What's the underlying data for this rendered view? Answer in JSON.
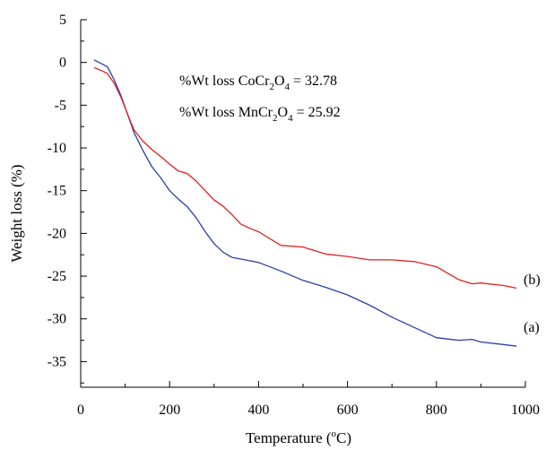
{
  "chart_data": {
    "type": "line",
    "xlabel": "Temperature (°C)",
    "xlabel_prefix": "Temperature (",
    "xlabel_sup": "o",
    "xlabel_suffix": "C)",
    "ylabel": "Weight loss (%)",
    "xlim": [
      0,
      1000
    ],
    "ylim": [
      -38,
      5
    ],
    "x_ticks": [
      0,
      200,
      400,
      600,
      800,
      1000
    ],
    "y_ticks": [
      5,
      0,
      -5,
      -10,
      -15,
      -20,
      -25,
      -30,
      -35
    ],
    "grid": false,
    "annotations": [
      {
        "prefix": "%Wt loss CoCr",
        "sub1": "2",
        "mid": "O",
        "sub2": "4",
        "suffix": " = 32.78"
      },
      {
        "prefix": "%Wt loss MnCr",
        "sub1": "2",
        "mid": "O",
        "sub2": "4",
        "suffix": " = 25.92"
      }
    ],
    "series": [
      {
        "label": "(a)",
        "color": "#2b3ea6",
        "x": [
          30,
          45,
          60,
          75,
          90,
          105,
          120,
          140,
          160,
          180,
          200,
          220,
          240,
          260,
          280,
          300,
          320,
          340,
          360,
          380,
          400,
          450,
          500,
          550,
          600,
          650,
          700,
          750,
          800,
          850,
          880,
          900,
          950,
          980
        ],
        "y": [
          0.3,
          -0.1,
          -0.5,
          -2.0,
          -3.8,
          -6.0,
          -8.2,
          -10.3,
          -12.2,
          -13.5,
          -15.0,
          -16.0,
          -16.9,
          -18.2,
          -19.8,
          -21.2,
          -22.2,
          -22.8,
          -23.0,
          -23.2,
          -23.4,
          -24.4,
          -25.5,
          -26.3,
          -27.2,
          -28.4,
          -29.8,
          -31.0,
          -32.2,
          -32.5,
          -32.4,
          -32.7,
          -33.0,
          -33.2
        ]
      },
      {
        "label": "(b)",
        "color": "#e02020",
        "x": [
          30,
          45,
          60,
          75,
          90,
          105,
          120,
          140,
          160,
          180,
          200,
          220,
          240,
          260,
          280,
          300,
          320,
          340,
          360,
          380,
          400,
          450,
          500,
          550,
          600,
          650,
          700,
          750,
          800,
          850,
          880,
          900,
          950,
          980
        ],
        "y": [
          -0.6,
          -0.9,
          -1.3,
          -2.4,
          -4.0,
          -6.0,
          -7.9,
          -9.2,
          -10.2,
          -11.0,
          -11.9,
          -12.7,
          -13.0,
          -13.9,
          -15.0,
          -16.1,
          -16.8,
          -17.8,
          -18.9,
          -19.4,
          -19.8,
          -21.4,
          -21.6,
          -22.4,
          -22.7,
          -23.1,
          -23.1,
          -23.3,
          -23.9,
          -25.4,
          -25.9,
          -25.8,
          -26.1,
          -26.4
        ]
      }
    ]
  }
}
